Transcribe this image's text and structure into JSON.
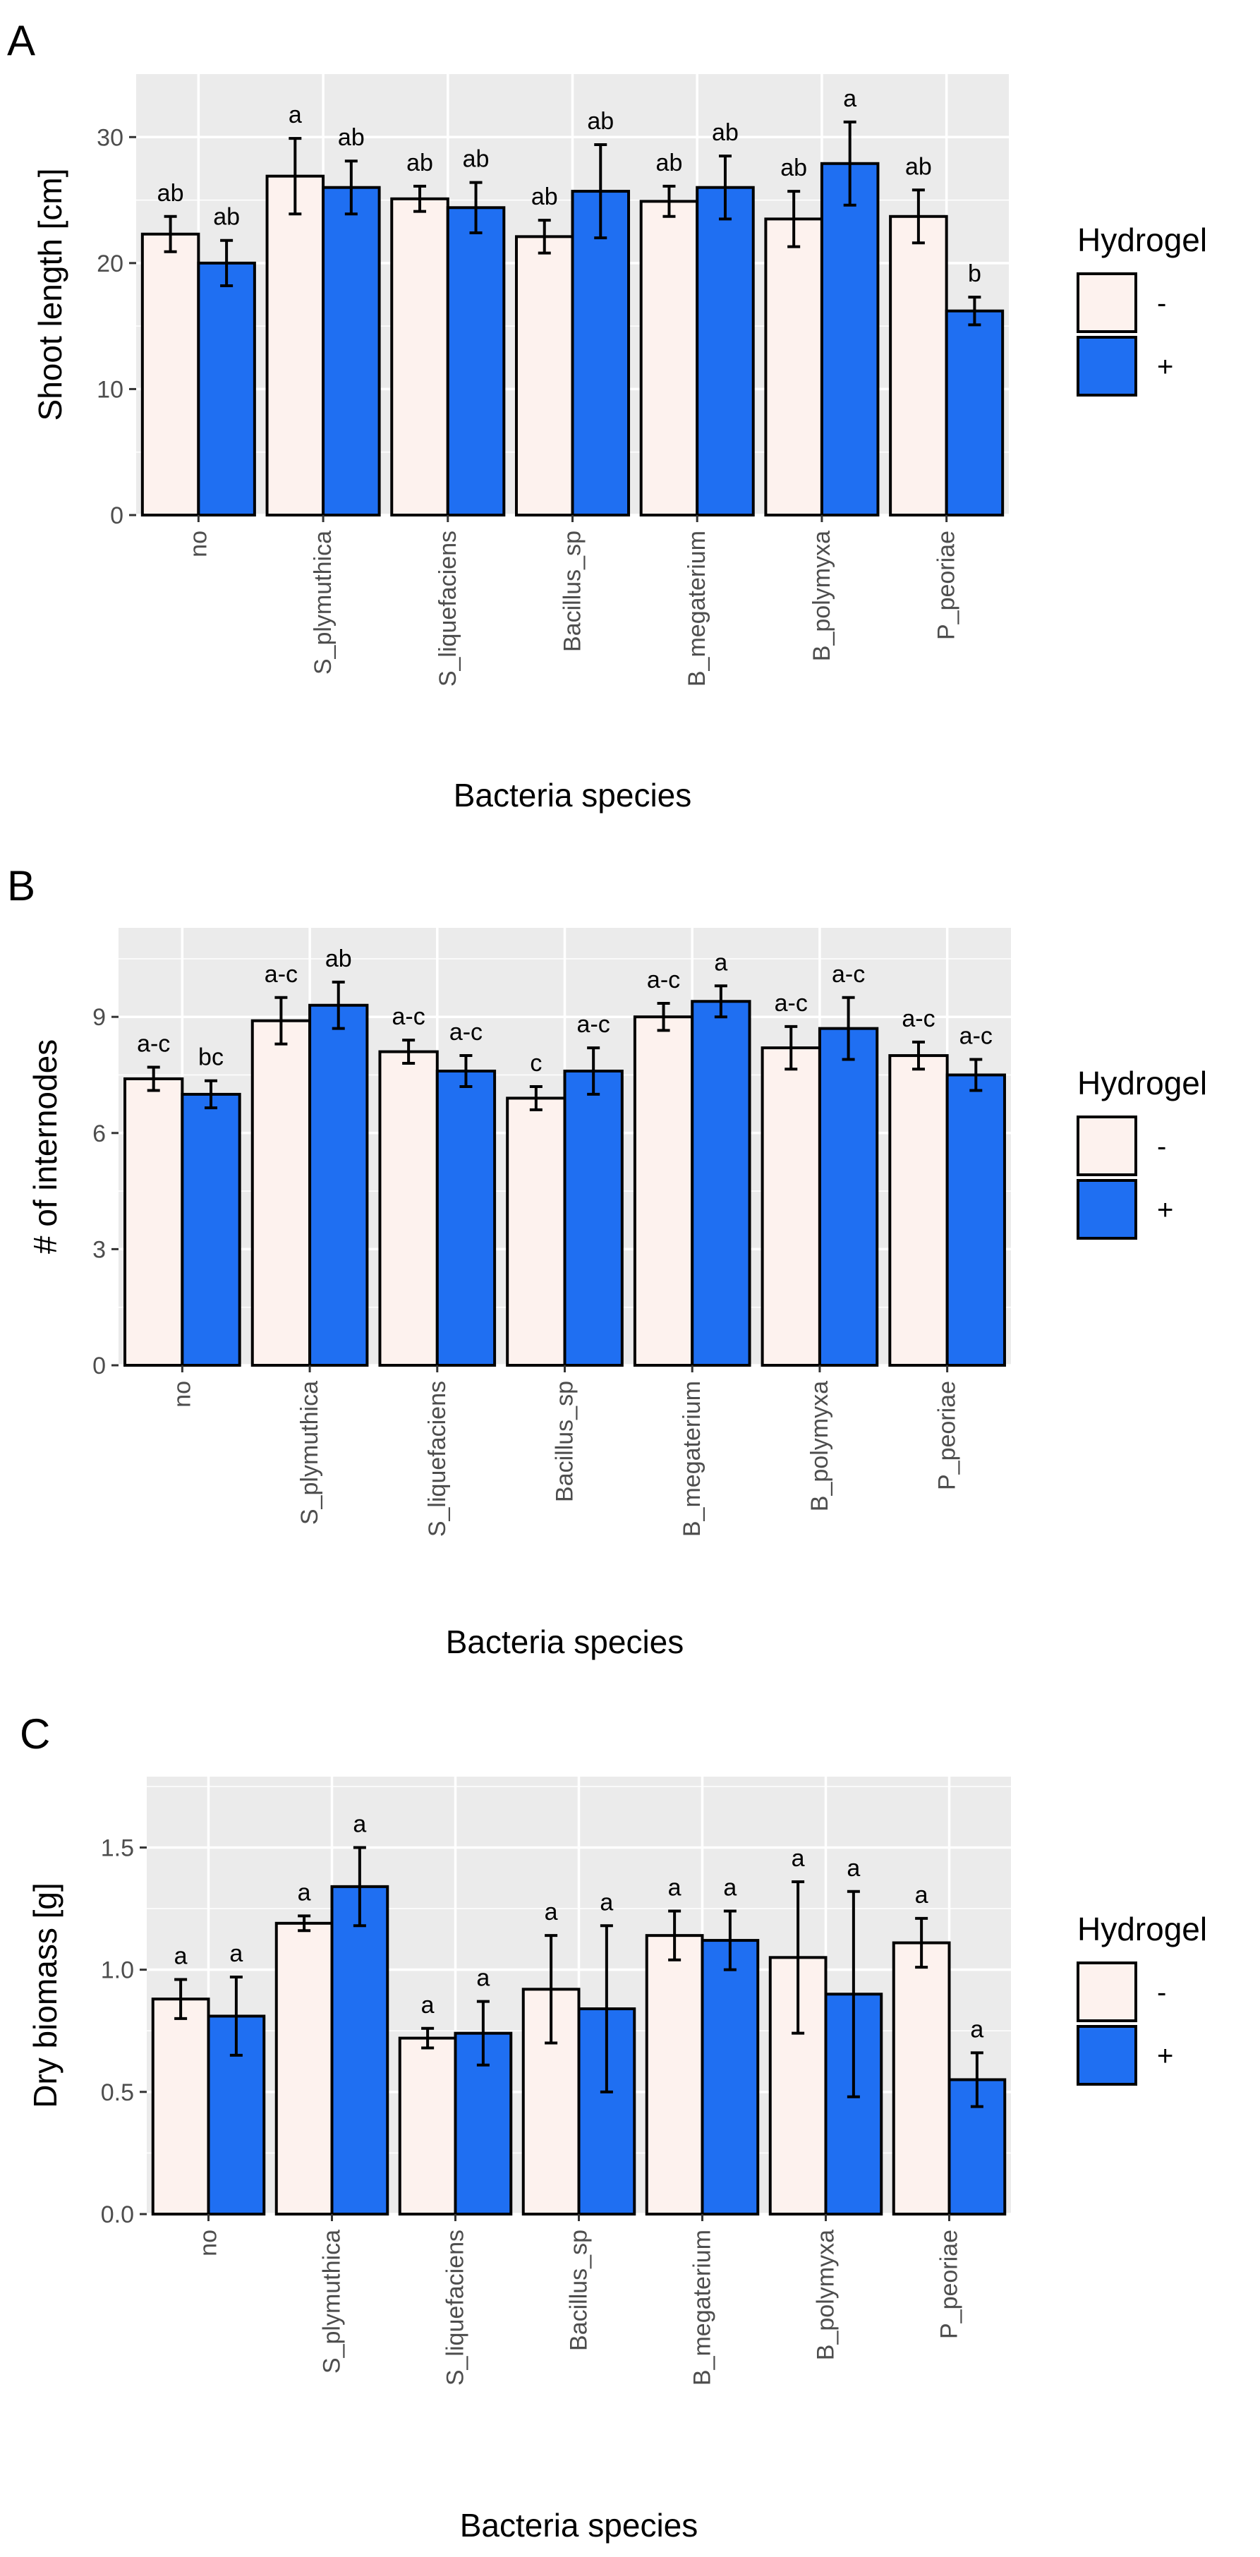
{
  "figure": {
    "legend_title": "Hydrogel",
    "legend_labels": [
      "-",
      "+"
    ],
    "colors": {
      "minus": "#fdf2ee",
      "plus": "#1f6ff2",
      "panel_bg": "#ebebeb",
      "grid": "#ffffff",
      "bar_stroke": "#000000"
    }
  },
  "chart_data": [
    {
      "panel_label": "A",
      "type": "bar",
      "title": "",
      "xlabel": "Bacteria species",
      "ylabel": "Shoot length [cm]",
      "ylim": [
        0,
        35
      ],
      "yticks": [
        0,
        10,
        20,
        30
      ],
      "categories": [
        "no",
        "S_plymuthica",
        "S_liquefaciens",
        "Bacillus_sp",
        "B_megaterium",
        "B_polymyxa",
        "P_peoriae"
      ],
      "series": [
        {
          "name": "-",
          "values": [
            22.3,
            26.9,
            25.1,
            22.1,
            24.9,
            23.5,
            23.7
          ],
          "errors": [
            1.4,
            3.0,
            1.0,
            1.3,
            1.2,
            2.2,
            2.1
          ],
          "letters": [
            "ab",
            "a",
            "ab",
            "ab",
            "ab",
            "ab",
            "ab"
          ]
        },
        {
          "name": "+",
          "values": [
            20.0,
            26.0,
            24.4,
            25.7,
            26.0,
            27.9,
            16.2
          ],
          "errors": [
            1.8,
            2.1,
            2.0,
            3.7,
            2.5,
            3.3,
            1.1
          ],
          "letters": [
            "ab",
            "ab",
            "ab",
            "ab",
            "ab",
            "a",
            "b"
          ]
        }
      ]
    },
    {
      "panel_label": "B",
      "type": "bar",
      "title": "",
      "xlabel": "Bacteria species",
      "ylabel": "# of internodes",
      "ylim": [
        0,
        11.3
      ],
      "yticks": [
        0,
        3,
        6,
        9
      ],
      "categories": [
        "no",
        "S_plymuthica",
        "S_liquefaciens",
        "Bacillus_sp",
        "B_megaterium",
        "B_polymyxa",
        "P_peoriae"
      ],
      "series": [
        {
          "name": "-",
          "values": [
            7.4,
            8.9,
            8.1,
            6.9,
            9.0,
            8.2,
            8.0
          ],
          "errors": [
            0.3,
            0.6,
            0.3,
            0.3,
            0.35,
            0.55,
            0.35
          ],
          "letters": [
            "a-c",
            "a-c",
            "a-c",
            "c",
            "a-c",
            "a-c",
            "a-c"
          ]
        },
        {
          "name": "+",
          "values": [
            7.0,
            9.3,
            7.6,
            7.6,
            9.4,
            8.7,
            7.5
          ],
          "errors": [
            0.35,
            0.6,
            0.4,
            0.6,
            0.4,
            0.8,
            0.4
          ],
          "letters": [
            "bc",
            "ab",
            "a-c",
            "a-c",
            "a",
            "a-c",
            "a-c"
          ]
        }
      ]
    },
    {
      "panel_label": "C",
      "type": "bar",
      "title": "",
      "xlabel": "Bacteria species",
      "ylabel": "Dry biomass [g]",
      "ylim": [
        0,
        1.79
      ],
      "yticks": [
        0.0,
        0.5,
        1.0,
        1.5
      ],
      "ytick_labels": [
        "0.0",
        "0.5",
        "1.0",
        "1.5"
      ],
      "categories": [
        "no",
        "S_plymuthica",
        "S_liquefaciens",
        "Bacillus_sp",
        "B_megaterium",
        "B_polymyxa",
        "P_peoriae"
      ],
      "series": [
        {
          "name": "-",
          "values": [
            0.88,
            1.19,
            0.72,
            0.92,
            1.14,
            1.05,
            1.11
          ],
          "errors": [
            0.08,
            0.03,
            0.04,
            0.22,
            0.1,
            0.31,
            0.1
          ],
          "letters": [
            "a",
            "a",
            "a",
            "a",
            "a",
            "a",
            "a"
          ]
        },
        {
          "name": "+",
          "values": [
            0.81,
            1.34,
            0.74,
            0.84,
            1.12,
            0.9,
            0.55
          ],
          "errors": [
            0.16,
            0.16,
            0.13,
            0.34,
            0.12,
            0.42,
            0.11
          ],
          "letters": [
            "a",
            "a",
            "a",
            "a",
            "a",
            "a",
            "a"
          ]
        }
      ]
    }
  ]
}
